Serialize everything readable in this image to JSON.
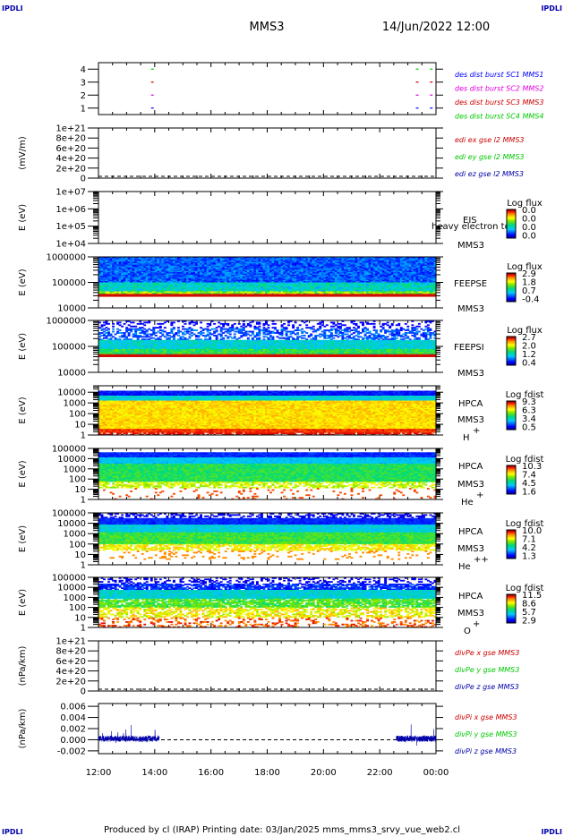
{
  "corner_mark": "IPDLI",
  "header": {
    "spacecraft": "MMS3",
    "datetime": "14/Jun/2022 12:00"
  },
  "footer": "Produced by cl (IRAP)   Printing date: 03/Jan/2025   mms_mms3_srvy_vue_web2.cl",
  "colors": {
    "red": "#ff0000",
    "green": "#00c800",
    "blue": "#0000ff",
    "magenta": "#e000e0",
    "dark_red": "#cc0000",
    "dashed_line": "#000000"
  },
  "chart_data": [
    {
      "id": "burst",
      "type": "scatter",
      "ylabel": "",
      "yticks": [
        "1",
        "2",
        "3",
        "4"
      ],
      "ylim": [
        0.5,
        4.5
      ],
      "xlim": [
        "12:00",
        "00:00"
      ],
      "series": [
        {
          "name": "des dist burst SC1 MMS1",
          "color": "#0000ff",
          "y": 1,
          "x": [
            "13:55",
            "23:20",
            "23:50"
          ]
        },
        {
          "name": "des dist burst SC2 MMS2",
          "color": "#e000e0",
          "y": 2,
          "x": [
            "13:55",
            "23:20",
            "23:50"
          ]
        },
        {
          "name": "des dist burst SC3 MMS3",
          "color": "#cc0000",
          "y": 3,
          "x": [
            "13:55",
            "23:20",
            "23:50"
          ]
        },
        {
          "name": "des dist burst SC4 MMS4",
          "color": "#00c800",
          "y": 4,
          "x": [
            "13:55",
            "23:20",
            "23:50"
          ]
        }
      ]
    },
    {
      "id": "edi",
      "type": "line",
      "ylabel": "(mV/m)",
      "yticks": [
        "0",
        "2e+20",
        "4e+20",
        "6e+20",
        "8e+20",
        "1e+21"
      ],
      "ylim": [
        0,
        1e+21
      ],
      "reference_line": 0,
      "series": [
        {
          "name": "edi ex gse l2 MMS3",
          "color": "#cc0000"
        },
        {
          "name": "edi ey gse l2 MMS3",
          "color": "#00c800"
        },
        {
          "name": "edi ez gse l2 MMS3",
          "color": "#0000aa"
        }
      ]
    },
    {
      "id": "eis",
      "type": "heatmap",
      "ylabel": "E (eV)",
      "ylog": true,
      "yticks": [
        "1e+04",
        "1e+05",
        "1e+06",
        "1e+07"
      ],
      "ylim": [
        10000,
        10000000
      ],
      "instrument": "EIS",
      "species": "heavy electron tof",
      "spacecraft": "MMS3",
      "colorbar": {
        "title": "Log flux",
        "labels": [
          "0.0",
          "0.0",
          "0.0",
          "0.0"
        ]
      },
      "data": "none"
    },
    {
      "id": "feepse",
      "type": "heatmap",
      "ylabel": "E (eV)",
      "ylog": true,
      "yticks": [
        "10000",
        "100000",
        "1000000"
      ],
      "ylim": [
        10000,
        1000000
      ],
      "instrument": "FEEPSE",
      "spacecraft": "MMS3",
      "colorbar": {
        "title": "Log flux",
        "labels": [
          "2.9",
          "1.8",
          "0.7",
          "-0.4"
        ],
        "range": [
          -0.4,
          2.9
        ]
      },
      "data_energy_range": [
        30000,
        1000000
      ]
    },
    {
      "id": "feepsi",
      "type": "heatmap",
      "ylabel": "E (eV)",
      "ylog": true,
      "yticks": [
        "10000",
        "100000",
        "1000000"
      ],
      "ylim": [
        10000,
        1000000
      ],
      "instrument": "FEEPSI",
      "spacecraft": "MMS3",
      "colorbar": {
        "title": "Log flux",
        "labels": [
          "2.7",
          "2.0",
          "1.2",
          "0.4"
        ],
        "range": [
          0.4,
          2.7
        ]
      },
      "data_energy_range": [
        50000,
        800000
      ]
    },
    {
      "id": "hpca_h",
      "type": "heatmap",
      "ylabel": "E (eV)",
      "ylog": true,
      "yticks": [
        "1",
        "10",
        "100",
        "1000",
        "10000"
      ],
      "ylim": [
        1,
        40000
      ],
      "instrument": "HPCA",
      "spacecraft": "MMS3",
      "species": "H",
      "charge": "+",
      "colorbar": {
        "title": "Log fdist",
        "labels": [
          "9.3",
          "6.3",
          "3.4",
          "0.5"
        ],
        "range": [
          0.5,
          9.3
        ]
      }
    },
    {
      "id": "hpca_he",
      "type": "heatmap",
      "ylabel": "E (eV)",
      "ylog": true,
      "yticks": [
        "1",
        "10",
        "100",
        "1000",
        "10000",
        "100000"
      ],
      "ylim": [
        1,
        100000
      ],
      "instrument": "HPCA",
      "spacecraft": "MMS3",
      "species": "He",
      "charge": "+",
      "colorbar": {
        "title": "Log fdist",
        "labels": [
          "10.3",
          "7.4",
          "4.5",
          "1.6"
        ],
        "range": [
          1.6,
          10.3
        ]
      }
    },
    {
      "id": "hpca_he2",
      "type": "heatmap",
      "ylabel": "E (eV)",
      "ylog": true,
      "yticks": [
        "1",
        "10",
        "100",
        "1000",
        "10000",
        "100000"
      ],
      "ylim": [
        1,
        100000
      ],
      "instrument": "HPCA",
      "spacecraft": "MMS3",
      "species": "He",
      "charge": "++",
      "colorbar": {
        "title": "Log fdist",
        "labels": [
          "10.0",
          "7.1",
          "4.2",
          "1.3"
        ],
        "range": [
          1.3,
          10.0
        ]
      }
    },
    {
      "id": "hpca_o",
      "type": "heatmap",
      "ylabel": "E (eV)",
      "ylog": true,
      "yticks": [
        "1",
        "10",
        "100",
        "1000",
        "10000",
        "100000"
      ],
      "ylim": [
        1,
        100000
      ],
      "instrument": "HPCA",
      "spacecraft": "MMS3",
      "species": "O",
      "charge": "+",
      "colorbar": {
        "title": "Log fdist",
        "labels": [
          "11.5",
          "8.6",
          "5.7",
          "2.9"
        ],
        "range": [
          2.9,
          11.5
        ]
      }
    },
    {
      "id": "divpe",
      "type": "line",
      "ylabel": "(nPa/km)",
      "yticks": [
        "0",
        "2e+20",
        "4e+20",
        "6e+20",
        "8e+20",
        "1e+21"
      ],
      "ylim": [
        0,
        1e+21
      ],
      "reference_line": 0,
      "series": [
        {
          "name": "divPe x gse MMS3",
          "color": "#cc0000"
        },
        {
          "name": "divPe y gse MMS3",
          "color": "#00c800"
        },
        {
          "name": "divPe z gse MMS3",
          "color": "#0000aa"
        }
      ]
    },
    {
      "id": "divpi",
      "type": "line",
      "ylabel": "(nPa/km)",
      "yticks": [
        "-0.002",
        "0.000",
        "0.002",
        "0.004",
        "0.006"
      ],
      "ylim": [
        -0.0025,
        0.0065
      ],
      "reference_line": 0,
      "data_intervals": [
        [
          "12:00",
          "14:10"
        ],
        [
          "22:35",
          "00:00"
        ]
      ],
      "series": [
        {
          "name": "divPi x gse MMS3",
          "color": "#cc0000"
        },
        {
          "name": "divPi y gse MMS3",
          "color": "#00c800"
        },
        {
          "name": "divPi z gse MMS3",
          "color": "#0000aa"
        }
      ]
    }
  ],
  "time_axis": {
    "ticks": [
      "12:00",
      "14:00",
      "16:00",
      "18:00",
      "20:00",
      "22:00",
      "00:00"
    ],
    "range_hours": [
      12,
      24
    ]
  }
}
